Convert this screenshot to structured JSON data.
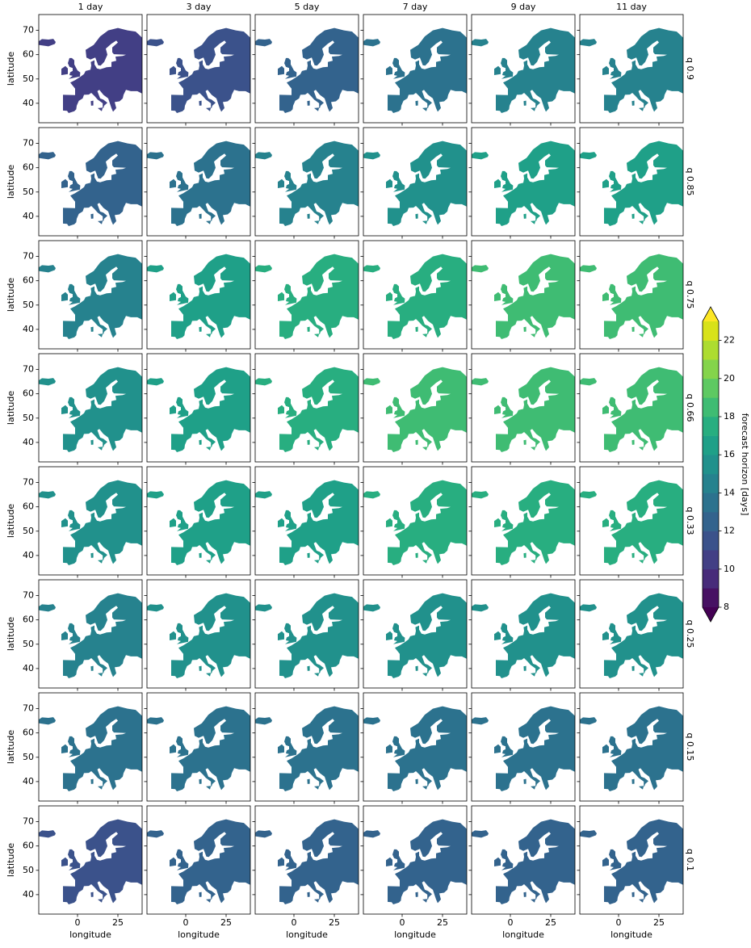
{
  "chart_data": {
    "type": "map",
    "columns": [
      "1 day",
      "3 day",
      "5 day",
      "7 day",
      "9 day",
      "11 day"
    ],
    "rows": [
      "q 0.9",
      "q 0.85",
      "q 0.75",
      "q 0.66",
      "q 0.33",
      "q 0.25",
      "q 0.15",
      "q 0.1"
    ],
    "xlabel": "longitude",
    "ylabel": "latitude",
    "xlim": [
      -24,
      40
    ],
    "ylim": [
      32,
      76.5
    ],
    "xticks": [
      0,
      25
    ],
    "yticks": [
      40,
      50,
      60,
      70
    ],
    "values": [
      [
        10,
        11,
        12,
        13,
        14,
        14
      ],
      [
        12,
        13,
        14,
        15,
        16,
        16
      ],
      [
        14,
        16,
        17,
        17,
        18,
        18
      ],
      [
        15,
        16,
        17,
        18,
        18,
        18
      ],
      [
        15,
        16,
        16,
        17,
        17,
        17
      ],
      [
        14,
        15,
        15,
        15,
        15,
        15
      ],
      [
        13,
        13,
        13,
        13,
        13,
        13
      ],
      [
        11,
        12,
        12,
        12,
        12,
        12
      ]
    ],
    "colorbar_label": "forecast horizon [days]",
    "levels": [
      8,
      9,
      10,
      11,
      12,
      13,
      14,
      15,
      16,
      17,
      18,
      19,
      20,
      21,
      22,
      23
    ],
    "colors": [
      "#471163",
      "#472b7a",
      "#423f85",
      "#3b528b",
      "#33638d",
      "#2c728e",
      "#26828e",
      "#21918c",
      "#1fa088",
      "#28ae80",
      "#3fbc73",
      "#5ec962",
      "#84d44b",
      "#addc30",
      "#d8e219"
    ],
    "under_color": "#440154",
    "over_color": "#fde725",
    "cbar_ticks": [
      8,
      10,
      12,
      14,
      16,
      18,
      20,
      22
    ]
  }
}
